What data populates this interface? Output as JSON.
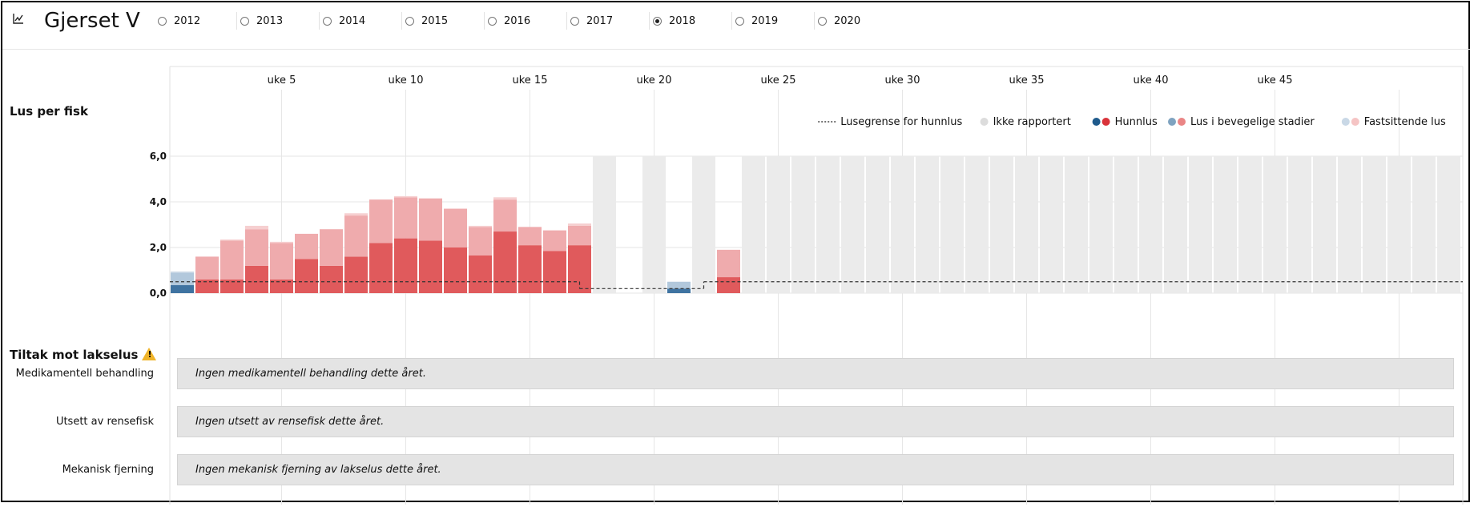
{
  "header": {
    "title": "Gjerset V",
    "icon": "line-chart-icon",
    "years": [
      {
        "label": "2012",
        "selected": false
      },
      {
        "label": "2013",
        "selected": false
      },
      {
        "label": "2014",
        "selected": false
      },
      {
        "label": "2015",
        "selected": false
      },
      {
        "label": "2016",
        "selected": false
      },
      {
        "label": "2017",
        "selected": false
      },
      {
        "label": "2018",
        "selected": true
      },
      {
        "label": "2019",
        "selected": false
      },
      {
        "label": "2020",
        "selected": false
      }
    ]
  },
  "section_lice": {
    "title": "Lus per fisk"
  },
  "chart_data": {
    "type": "bar",
    "x_ticks": [
      "uke 5",
      "uke 10",
      "uke 15",
      "uke 20",
      "uke 25",
      "uke 30",
      "uke 35",
      "uke 40",
      "uke 45"
    ],
    "y_ticks": [
      "0,0",
      "2,0",
      "4,0",
      "6,0"
    ],
    "ylim": [
      0,
      6
    ],
    "weeks_in_year": 52,
    "legend": [
      {
        "label": "Lusegrense for hunnlus",
        "style": "dashed-line"
      },
      {
        "label": "Ikke rapportert",
        "colors": [
          "#dcdcdc"
        ]
      },
      {
        "label": "Hunnlus",
        "colors": [
          "#1f5a8c",
          "#d9333a"
        ]
      },
      {
        "label": "Lus i bevegelige stadier",
        "colors": [
          "#7fa3c0",
          "#ea8585"
        ]
      },
      {
        "label": "Fastsittende lus",
        "colors": [
          "#c9d8e6",
          "#f5c4c4"
        ]
      }
    ],
    "colors": {
      "under_limit": {
        "adult_female": "#3f73a1",
        "mobile": "#b2c8dc",
        "attached": "#cfdbe7"
      },
      "over_limit": {
        "adult_female": "#e05a5c",
        "mobile": "#efabad",
        "attached": "#f6cfd0"
      },
      "not_reported": "#ebebeb"
    },
    "limit_series": [
      {
        "from_week": 1,
        "to_week": 17,
        "value": 0.5
      },
      {
        "from_week": 17,
        "to_week": 22,
        "value": 0.2
      },
      {
        "from_week": 22,
        "to_week": 52,
        "value": 0.5
      }
    ],
    "series": [
      {
        "week": 1,
        "adult_female": 0.35,
        "mobile": 0.55,
        "attached": 0.05
      },
      {
        "week": 2,
        "adult_female": 0.6,
        "mobile": 1.0,
        "attached": 0.0
      },
      {
        "week": 3,
        "adult_female": 0.6,
        "mobile": 1.7,
        "attached": 0.05
      },
      {
        "week": 4,
        "adult_female": 1.2,
        "mobile": 1.6,
        "attached": 0.15
      },
      {
        "week": 5,
        "adult_female": 0.6,
        "mobile": 1.6,
        "attached": 0.05
      },
      {
        "week": 6,
        "adult_female": 1.5,
        "mobile": 1.1,
        "attached": 0.0
      },
      {
        "week": 7,
        "adult_female": 1.2,
        "mobile": 1.6,
        "attached": 0.0
      },
      {
        "week": 8,
        "adult_female": 1.6,
        "mobile": 1.8,
        "attached": 0.1
      },
      {
        "week": 9,
        "adult_female": 2.2,
        "mobile": 1.9,
        "attached": 0.0
      },
      {
        "week": 10,
        "adult_female": 2.4,
        "mobile": 1.8,
        "attached": 0.05
      },
      {
        "week": 11,
        "adult_female": 2.3,
        "mobile": 1.85,
        "attached": 0.0
      },
      {
        "week": 12,
        "adult_female": 2.0,
        "mobile": 1.7,
        "attached": 0.0
      },
      {
        "week": 13,
        "adult_female": 1.65,
        "mobile": 1.25,
        "attached": 0.05
      },
      {
        "week": 14,
        "adult_female": 2.7,
        "mobile": 1.4,
        "attached": 0.1
      },
      {
        "week": 15,
        "adult_female": 2.1,
        "mobile": 0.8,
        "attached": 0.0
      },
      {
        "week": 16,
        "adult_female": 1.85,
        "mobile": 0.9,
        "attached": 0.0
      },
      {
        "week": 17,
        "adult_female": 2.1,
        "mobile": 0.85,
        "attached": 0.1
      },
      {
        "week": 18,
        "not_reported": true
      },
      {
        "week": 19,
        "not_reported": false
      },
      {
        "week": 20,
        "not_reported": true
      },
      {
        "week": 21,
        "adult_female": 0.2,
        "mobile": 0.3,
        "attached": 0.0
      },
      {
        "week": 22,
        "not_reported": true
      },
      {
        "week": 23,
        "adult_female": 0.7,
        "mobile": 1.2,
        "attached": 0.0
      },
      {
        "week": 24,
        "not_reported": true
      },
      {
        "week": 25,
        "not_reported": true
      },
      {
        "week": 26,
        "not_reported": true
      },
      {
        "week": 27,
        "not_reported": true
      },
      {
        "week": 28,
        "not_reported": true
      },
      {
        "week": 29,
        "not_reported": true
      },
      {
        "week": 30,
        "not_reported": true
      },
      {
        "week": 31,
        "not_reported": true
      },
      {
        "week": 32,
        "not_reported": true
      },
      {
        "week": 33,
        "not_reported": true
      },
      {
        "week": 34,
        "not_reported": true
      },
      {
        "week": 35,
        "not_reported": true
      },
      {
        "week": 36,
        "not_reported": true
      },
      {
        "week": 37,
        "not_reported": true
      },
      {
        "week": 38,
        "not_reported": true
      },
      {
        "week": 39,
        "not_reported": true
      },
      {
        "week": 40,
        "not_reported": true
      },
      {
        "week": 41,
        "not_reported": true
      },
      {
        "week": 42,
        "not_reported": true
      },
      {
        "week": 43,
        "not_reported": true
      },
      {
        "week": 44,
        "not_reported": true
      },
      {
        "week": 45,
        "not_reported": true
      },
      {
        "week": 46,
        "not_reported": true
      },
      {
        "week": 47,
        "not_reported": true
      },
      {
        "week": 48,
        "not_reported": true
      },
      {
        "week": 49,
        "not_reported": true
      },
      {
        "week": 50,
        "not_reported": true
      },
      {
        "week": 51,
        "not_reported": true
      },
      {
        "week": 52,
        "not_reported": true
      }
    ]
  },
  "measures": {
    "title": "Tiltak mot lakselus",
    "rows": [
      {
        "label": "Medikamentell behandling",
        "text": "Ingen medikamentell behandling dette året."
      },
      {
        "label": "Utsett av rensefisk",
        "text": "Ingen utsett av rensefisk dette året."
      },
      {
        "label": "Mekanisk fjerning",
        "text": "Ingen mekanisk fjerning av lakselus dette året."
      }
    ]
  }
}
